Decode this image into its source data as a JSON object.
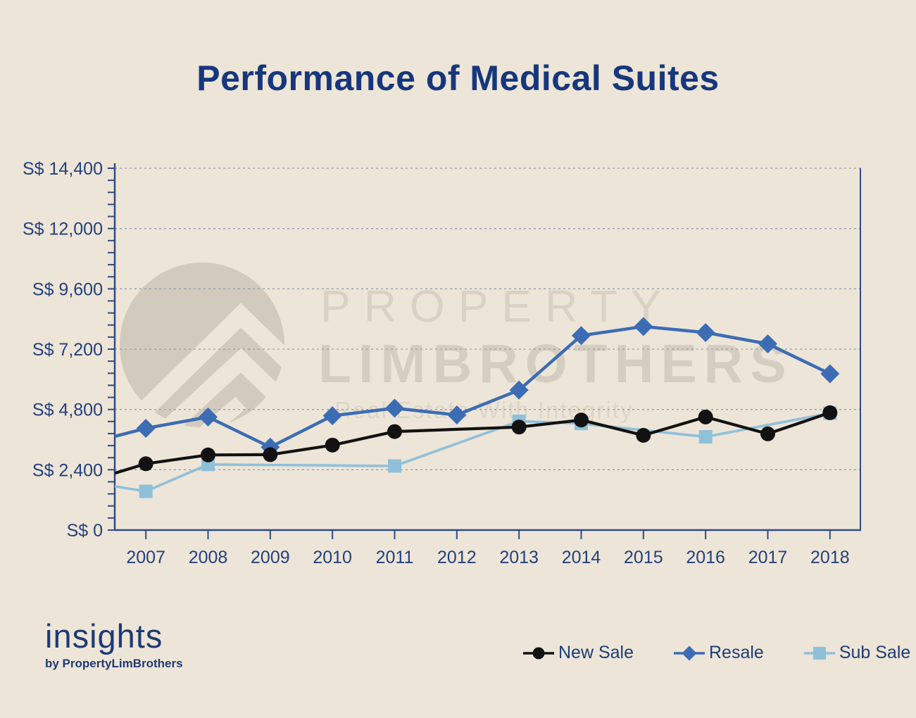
{
  "title": "Performance of Medical Suites",
  "watermark": {
    "line1": "PROPERTY",
    "line2": "LIMBROTHERS",
    "tagline": "Real Estate With Integrity"
  },
  "footer": {
    "brand": "insights",
    "sub_brand": "by PropertyLimBrothers"
  },
  "legend": [
    {
      "label": "New Sale",
      "marker": "circle",
      "color": "#121212"
    },
    {
      "label": "Resale",
      "marker": "diamond",
      "color": "#3C6CB4"
    },
    {
      "label": "Sub Sale",
      "marker": "square",
      "color": "#8FC0DA"
    }
  ],
  "colors": {
    "background": "#EDE5D7",
    "title_text": "#16377D",
    "axis_line": "#2F4B86",
    "axis_text": "#24407E",
    "gridline": "#8E9BBD",
    "new_sale": "#121212",
    "resale": "#3C6CB4",
    "sub_sale": "#8FC0DA",
    "watermark": "#D2CBBD"
  },
  "chart_data": {
    "type": "line",
    "title": "Performance of Medical Suites",
    "x": [
      "2007",
      "2008",
      "2009",
      "2010",
      "2011",
      "2012",
      "2013",
      "2014",
      "2015",
      "2016",
      "2017",
      "2018"
    ],
    "y_axis": {
      "prefix": "S$",
      "min": 0,
      "max": 14400,
      "major_step": 2400,
      "minor_step": 480,
      "tick_values": [
        0,
        2400,
        4800,
        7200,
        9600,
        12000,
        14400
      ],
      "tick_labels": [
        "S$ 0",
        "S$ 2,400",
        "S$ 4,800",
        "S$ 7,200",
        "S$ 9,600",
        "S$ 12,000",
        "S$ 14,400"
      ]
    },
    "grid": "horizontal-dashed",
    "legend_position": "bottom-right",
    "series": [
      {
        "name": "Sub Sale",
        "marker": "square",
        "color": "#8FC0DA",
        "values": [
          1540,
          2610,
          null,
          null,
          2550,
          null,
          4330,
          4240,
          null,
          3710,
          null,
          4650
        ],
        "edge_start": 1740
      },
      {
        "name": "Resale",
        "marker": "diamond",
        "color": "#3C6CB4",
        "values": [
          4050,
          4500,
          3300,
          4550,
          4850,
          4580,
          5570,
          7740,
          8100,
          7860,
          7410,
          6220
        ],
        "edge_start": 3730
      },
      {
        "name": "New Sale",
        "marker": "circle",
        "color": "#121212",
        "values": [
          2640,
          2990,
          3000,
          3380,
          3920,
          null,
          4100,
          4380,
          3770,
          4500,
          3830,
          4670
        ],
        "edge_start": 2260
      }
    ],
    "notes": "null = no transaction data that year; the line bridges the gap. edge_start = value where each line meets the left axis."
  }
}
